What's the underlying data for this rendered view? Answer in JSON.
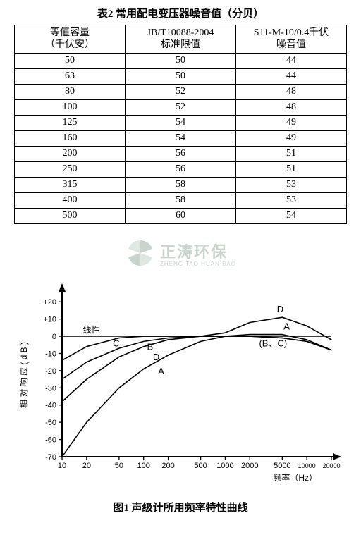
{
  "table": {
    "title": "表2  常用配电变压器噪音值（分贝）",
    "columns": [
      "等值容量\n（千伏安）",
      "JB/T10088-2004\n标准限值",
      "S11-M-10/0.4千伏\n噪音值"
    ],
    "rows": [
      [
        "50",
        "50",
        "44"
      ],
      [
        "63",
        "50",
        "44"
      ],
      [
        "80",
        "52",
        "48"
      ],
      [
        "100",
        "52",
        "48"
      ],
      [
        "125",
        "54",
        "49"
      ],
      [
        "160",
        "54",
        "49"
      ],
      [
        "200",
        "56",
        "51"
      ],
      [
        "250",
        "56",
        "51"
      ],
      [
        "315",
        "58",
        "53"
      ],
      [
        "400",
        "58",
        "53"
      ],
      [
        "500",
        "60",
        "54"
      ]
    ],
    "border_color": "#000000",
    "font_size": 14
  },
  "watermark": {
    "text_top": "正涛环保",
    "text_bottom": "ZHENG TAO HUAN BAO",
    "color": "#c8d4cc"
  },
  "chart": {
    "type": "line",
    "title": "图1  声级计所用频率特性曲线",
    "ylabel": "相 对 响 应  ( d B )",
    "xlabel": "频率（Hz）",
    "line_label_inside": "线性",
    "ylim": [
      -70,
      20
    ],
    "ytick_step": 10,
    "yticks_labels": [
      "+20",
      "+10",
      "0",
      "-10",
      "-20",
      "-30",
      "-40",
      "-50",
      "-60",
      "-70"
    ],
    "xticks_hz": [
      10,
      20,
      50,
      100,
      200,
      500,
      1000,
      2000,
      5000,
      10000,
      20000
    ],
    "xticks_labels": [
      "10",
      "20",
      "50",
      "100",
      "200",
      "500",
      "1000",
      "2000",
      "5000",
      "10000",
      "20000"
    ],
    "curve_annotations_left": [
      "C",
      "B",
      "D",
      "A"
    ],
    "curve_annotations_right": [
      "D",
      "A",
      "(B、C)"
    ],
    "background_color": "#ffffff",
    "line_color": "#000000",
    "line_width": 1.6,
    "axis_color": "#000000",
    "label_fontsize": 12,
    "tick_fontsize": 11,
    "series": {
      "linear": [
        [
          10,
          0
        ],
        [
          20000,
          0
        ]
      ],
      "A": [
        [
          10,
          -70
        ],
        [
          20,
          -50
        ],
        [
          50,
          -30
        ],
        [
          100,
          -19
        ],
        [
          200,
          -11
        ],
        [
          500,
          -3
        ],
        [
          1000,
          0
        ],
        [
          2000,
          1
        ],
        [
          5000,
          1
        ],
        [
          10000,
          -2
        ],
        [
          20000,
          -8
        ]
      ],
      "B": [
        [
          10,
          -38
        ],
        [
          20,
          -25
        ],
        [
          50,
          -12
        ],
        [
          100,
          -6
        ],
        [
          200,
          -2
        ],
        [
          500,
          0
        ],
        [
          1000,
          0
        ],
        [
          2000,
          0
        ],
        [
          5000,
          -1
        ],
        [
          10000,
          -3
        ],
        [
          20000,
          -8
        ]
      ],
      "C": [
        [
          10,
          -14
        ],
        [
          20,
          -6
        ],
        [
          50,
          -1
        ],
        [
          100,
          0
        ],
        [
          200,
          0
        ],
        [
          500,
          0
        ],
        [
          1000,
          0
        ],
        [
          2000,
          0
        ],
        [
          5000,
          -1
        ],
        [
          10000,
          -3
        ],
        [
          20000,
          -8
        ]
      ],
      "D": [
        [
          10,
          -25
        ],
        [
          20,
          -15
        ],
        [
          50,
          -7
        ],
        [
          100,
          -3
        ],
        [
          200,
          -1
        ],
        [
          500,
          0
        ],
        [
          1000,
          2
        ],
        [
          2000,
          8
        ],
        [
          5000,
          11
        ],
        [
          10000,
          6
        ],
        [
          20000,
          -2
        ]
      ]
    }
  }
}
